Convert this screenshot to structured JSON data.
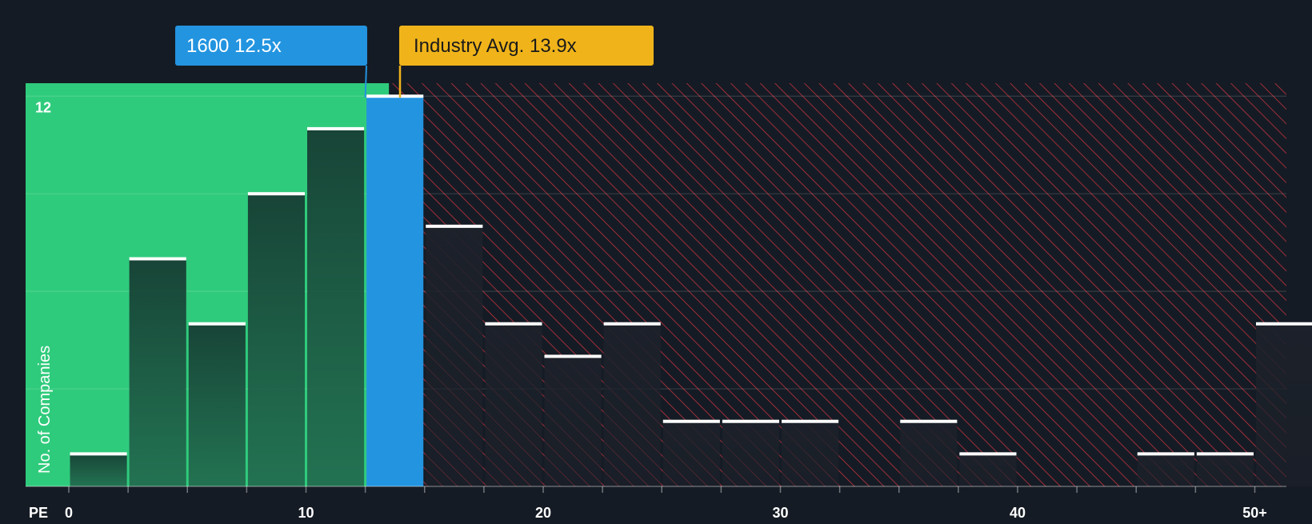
{
  "chart_data": {
    "type": "bar",
    "title": "",
    "xlabel": "PE",
    "ylabel": "No. of Companies",
    "xlim": [
      0,
      51.5
    ],
    "ylim": [
      0,
      12.4
    ],
    "bin_width": 2.5,
    "x_ticks": [
      {
        "value": 0,
        "label": "0"
      },
      {
        "value": 10,
        "label": "10"
      },
      {
        "value": 20,
        "label": "20"
      },
      {
        "value": 30,
        "label": "30"
      },
      {
        "value": 40,
        "label": "40"
      },
      {
        "value": 50,
        "label": "50+"
      }
    ],
    "y_ticks": [
      {
        "value": 12,
        "label": "12"
      }
    ],
    "grid_values": [
      3,
      6,
      9,
      12
    ],
    "bins": [
      {
        "start": 0,
        "value": 1
      },
      {
        "start": 2.5,
        "value": 7
      },
      {
        "start": 5,
        "value": 5
      },
      {
        "start": 7.5,
        "value": 9
      },
      {
        "start": 10,
        "value": 11
      },
      {
        "start": 12.5,
        "value": 12,
        "highlight": true
      },
      {
        "start": 15,
        "value": 8
      },
      {
        "start": 17.5,
        "value": 5
      },
      {
        "start": 20,
        "value": 4
      },
      {
        "start": 22.5,
        "value": 5
      },
      {
        "start": 25,
        "value": 2
      },
      {
        "start": 27.5,
        "value": 2
      },
      {
        "start": 30,
        "value": 2
      },
      {
        "start": 32.5,
        "value": 0
      },
      {
        "start": 35,
        "value": 2
      },
      {
        "start": 37.5,
        "value": 1
      },
      {
        "start": 40,
        "value": 0
      },
      {
        "start": 42.5,
        "value": 0
      },
      {
        "start": 45,
        "value": 1
      },
      {
        "start": 47.5,
        "value": 1
      },
      {
        "start": 50,
        "value": 5
      }
    ],
    "company": {
      "label": "1600 12.5x",
      "value": 12.5
    },
    "industry": {
      "label": "Industry Avg. 13.9x",
      "value": 13.9
    },
    "fair_zone_end": 13.5,
    "colors": {
      "background": "#151b24",
      "fair_zone": "#2fcb7c",
      "bar_fair": "#1e4a3f",
      "bar_over": "#1e222b",
      "company": "#2394e0",
      "industry": "#f0b41a",
      "hatch": "#c2323f",
      "cap": "#ffffff"
    }
  }
}
